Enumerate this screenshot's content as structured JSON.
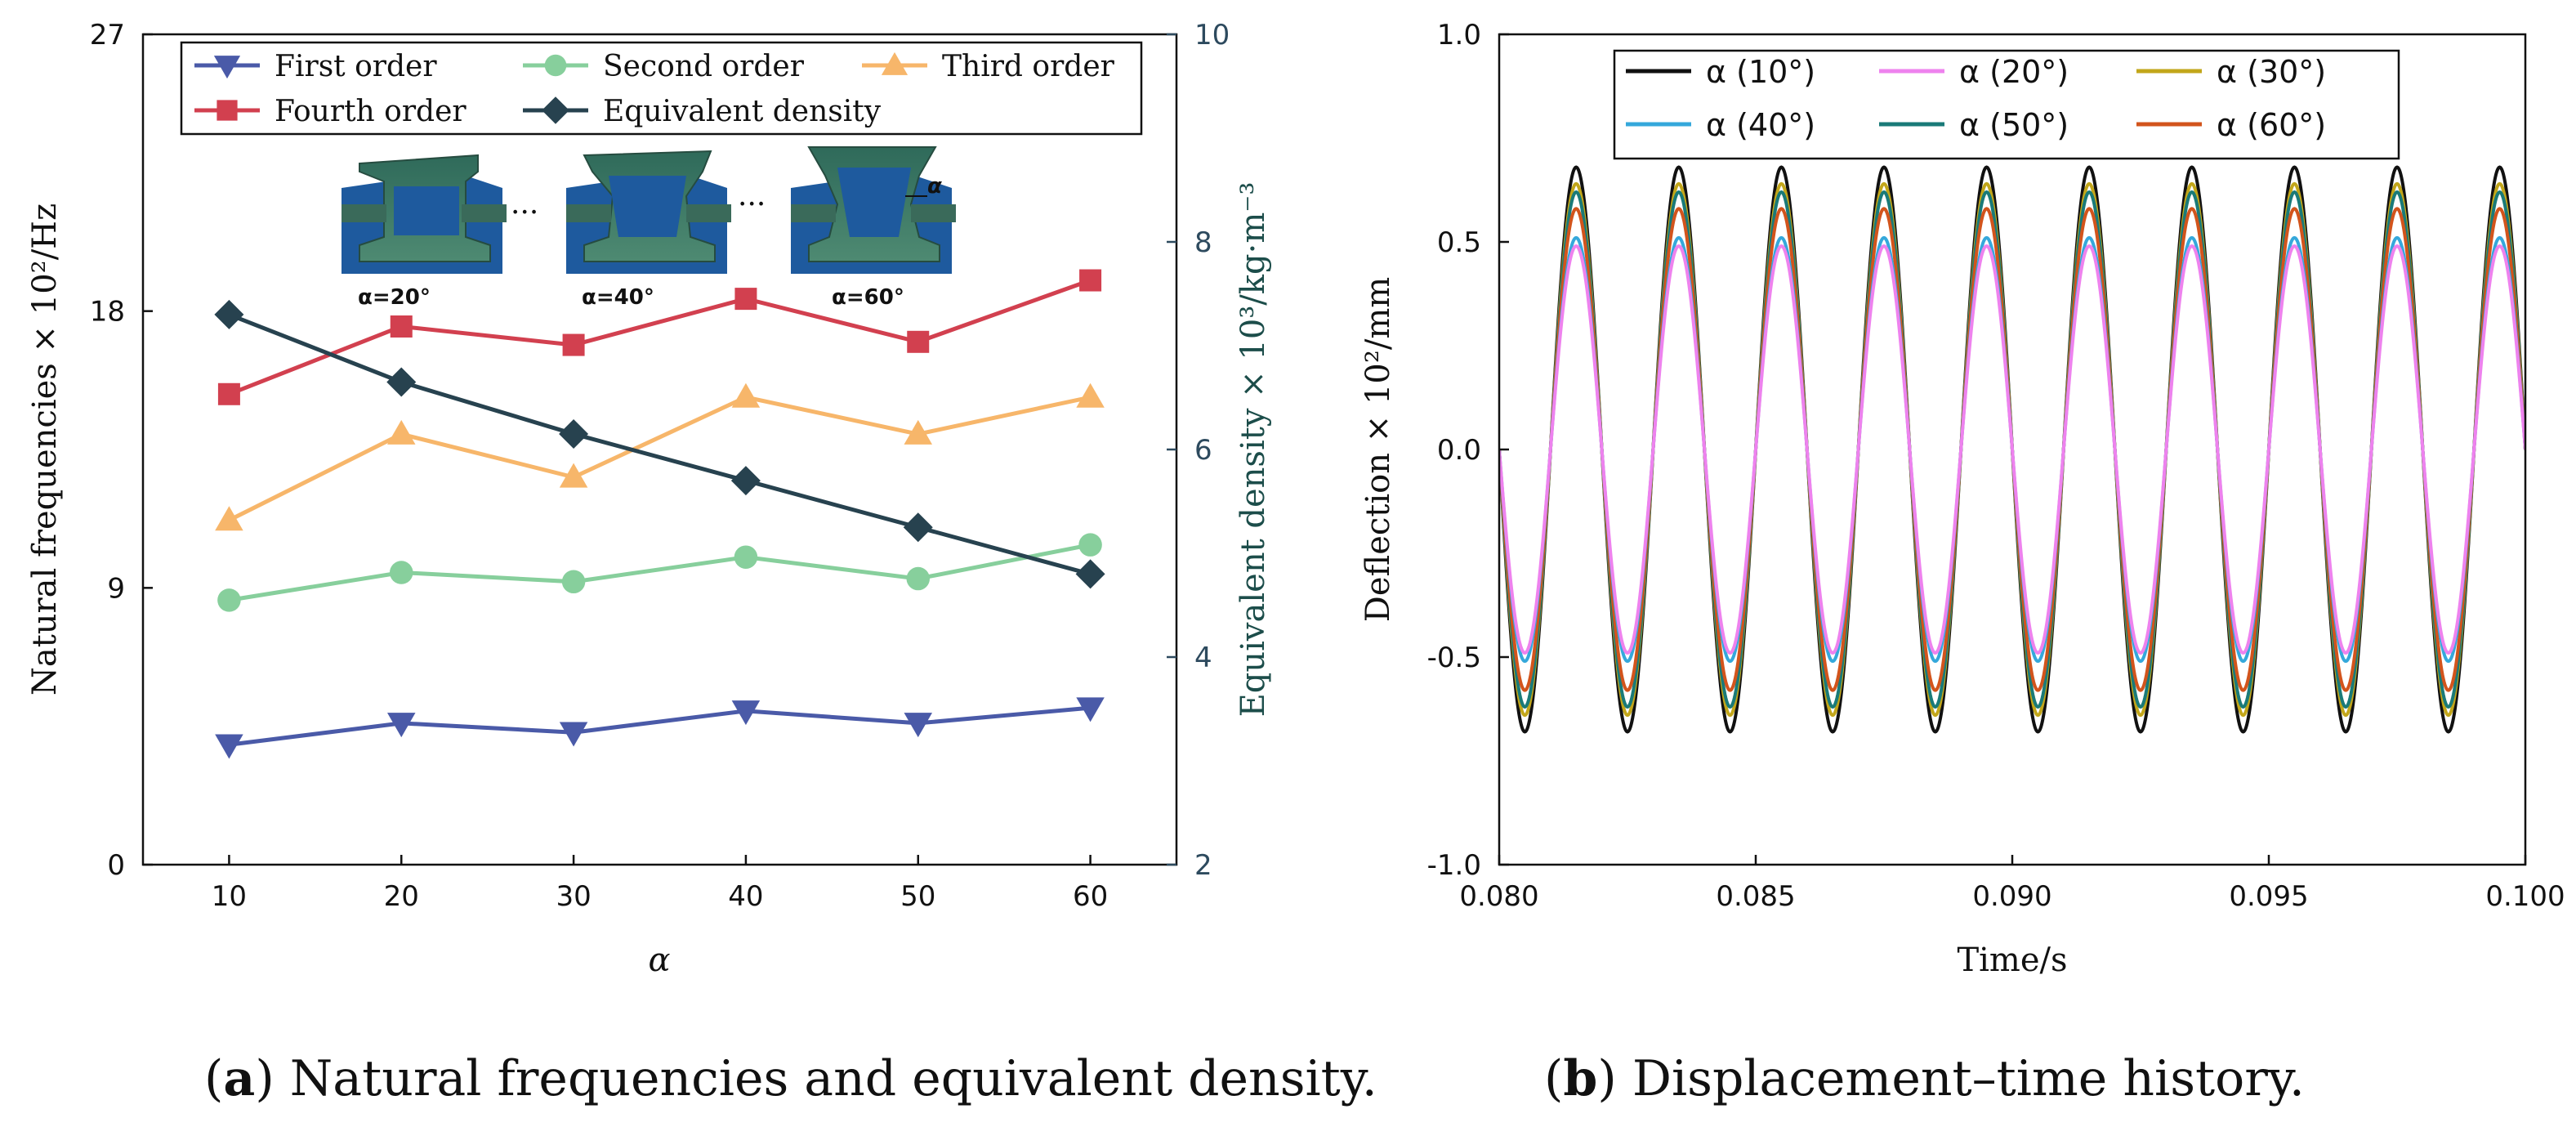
{
  "chart_data": [
    {
      "type": "line",
      "panel": "a",
      "xlabel": "α",
      "ylabel": "Natural frequencies × 10²/Hz",
      "y2label": "Equivalent density × 10³/kg·m⁻³",
      "x": [
        10,
        20,
        30,
        40,
        50,
        60
      ],
      "x_ticks": [
        "10",
        "20",
        "30",
        "40",
        "50",
        "60"
      ],
      "xlim": [
        5,
        65
      ],
      "ylim": [
        0,
        27
      ],
      "y_ticks": [
        "0",
        "9",
        "18",
        "27"
      ],
      "y2lim": [
        2,
        10
      ],
      "y2_ticks": [
        "2",
        "4",
        "6",
        "8",
        "10"
      ],
      "series": [
        {
          "name": "First order",
          "axis": "left",
          "color": "#4a5aa8",
          "marker": "triangle-down",
          "values": [
            3.9,
            4.6,
            4.3,
            5.0,
            4.6,
            5.1
          ]
        },
        {
          "name": "Second order",
          "axis": "left",
          "color": "#87cf9c",
          "marker": "circle",
          "values": [
            8.6,
            9.5,
            9.2,
            10.0,
            9.3,
            10.4
          ]
        },
        {
          "name": "Third order",
          "axis": "left",
          "color": "#f7b66a",
          "marker": "triangle-up",
          "values": [
            11.2,
            14.0,
            12.6,
            15.2,
            14.0,
            15.2
          ]
        },
        {
          "name": "Fourth order",
          "axis": "left",
          "color": "#d2404f",
          "marker": "square",
          "values": [
            15.3,
            17.5,
            16.9,
            18.4,
            17.0,
            19.0
          ]
        },
        {
          "name": "Equivalent density",
          "axis": "right",
          "color": "#27424f",
          "marker": "diamond",
          "values": [
            7.3,
            6.65,
            6.15,
            5.7,
            5.25,
            4.8
          ]
        }
      ],
      "legend": "top",
      "inset_labels": [
        "α=20°",
        "α=40°",
        "α=60°",
        "α"
      ],
      "inset_ellipsis": "···",
      "caption_letter": "a",
      "caption_text": " Natural frequencies and equivalent density."
    },
    {
      "type": "line",
      "panel": "b",
      "xlabel": "Time/s",
      "ylabel": "Deflection × 10²/mm",
      "xlim": [
        0.08,
        0.1
      ],
      "x_ticks": [
        "0.080",
        "0.085",
        "0.090",
        "0.095",
        "0.100"
      ],
      "ylim": [
        -1.0,
        1.0
      ],
      "y_ticks": [
        "-1.0",
        "-0.5",
        "0.0",
        "0.5",
        "1.0"
      ],
      "frequency_hz": 500,
      "series": [
        {
          "name": "α (10°)",
          "color": "#111111",
          "amplitude": 0.68
        },
        {
          "name": "α (20°)",
          "color": "#ee82ee",
          "amplitude": 0.49
        },
        {
          "name": "α (30°)",
          "color": "#c2a61a",
          "amplitude": 0.64
        },
        {
          "name": "α (40°)",
          "color": "#35a8db",
          "amplitude": 0.51
        },
        {
          "name": "α (50°)",
          "color": "#1a7a78",
          "amplitude": 0.62
        },
        {
          "name": "α (60°)",
          "color": "#d2541c",
          "amplitude": 0.58
        }
      ],
      "legend": "top",
      "caption_letter": "b",
      "caption_text": " Displacement–time history."
    }
  ]
}
